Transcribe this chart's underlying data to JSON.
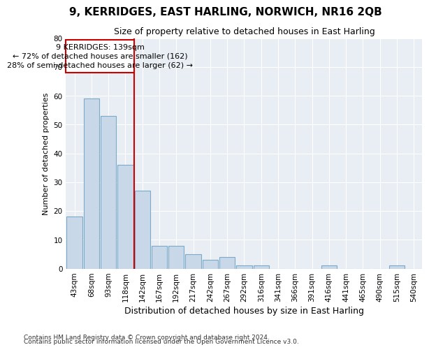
{
  "title": "9, KERRIDGES, EAST HARLING, NORWICH, NR16 2QB",
  "subtitle": "Size of property relative to detached houses in East Harling",
  "xlabel": "Distribution of detached houses by size in East Harling",
  "ylabel": "Number of detached properties",
  "categories": [
    "43sqm",
    "68sqm",
    "93sqm",
    "118sqm",
    "142sqm",
    "167sqm",
    "192sqm",
    "217sqm",
    "242sqm",
    "267sqm",
    "292sqm",
    "316sqm",
    "341sqm",
    "366sqm",
    "391sqm",
    "416sqm",
    "441sqm",
    "465sqm",
    "490sqm",
    "515sqm",
    "540sqm"
  ],
  "values": [
    18,
    59,
    53,
    36,
    27,
    8,
    8,
    5,
    3,
    4,
    1,
    1,
    0,
    0,
    0,
    1,
    0,
    0,
    0,
    1,
    0
  ],
  "bar_color": "#c8d8e8",
  "bar_edge_color": "#7aaac8",
  "vline_index": 4,
  "vline_color": "#cc0000",
  "annotation_box_color": "#cc0000",
  "annotation_text_line1": "9 KERRIDGES: 139sqm",
  "annotation_text_line2": "← 72% of detached houses are smaller (162)",
  "annotation_text_line3": "28% of semi-detached houses are larger (62) →",
  "ylim": [
    0,
    80
  ],
  "yticks": [
    0,
    10,
    20,
    30,
    40,
    50,
    60,
    70,
    80
  ],
  "footnote1": "Contains HM Land Registry data © Crown copyright and database right 2024.",
  "footnote2": "Contains public sector information licensed under the Open Government Licence v3.0.",
  "plot_bg_color": "#e8eef4",
  "grid_color": "#ffffff",
  "fig_background": "#ffffff",
  "title_fontsize": 11,
  "subtitle_fontsize": 9,
  "xlabel_fontsize": 9,
  "ylabel_fontsize": 8,
  "tick_fontsize": 7.5,
  "annot_fontsize": 8,
  "footnote_fontsize": 6.5
}
